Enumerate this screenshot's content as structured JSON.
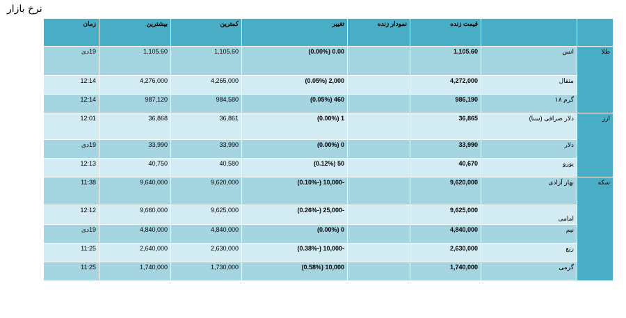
{
  "page": {
    "title": "نرخ بازار"
  },
  "headers": {
    "group": "",
    "name": "",
    "live_price": "قیمت زنده",
    "live_chart": "نمودار زنده",
    "change": "تغییر",
    "low": "کمترین",
    "high": "بیشترین",
    "time": "زمان"
  },
  "rows": [
    {
      "group": "طلا",
      "name": "انس",
      "price": "1,105.60",
      "change": "0.00 (0.00%)",
      "low": "1,105.60",
      "high": "1,105.60",
      "time": "19دی"
    },
    {
      "name": "مثقال",
      "price": "4,272,000",
      "change": "2,000 (0.05%)",
      "low": "4,265,000",
      "high": "4,276,000",
      "time": "12:14"
    },
    {
      "name": "گرم ۱۸",
      "price": "986,190",
      "change": "460 (0.05%)",
      "low": "984,580",
      "high": "987,120",
      "time": "12:14"
    },
    {
      "group": "ارز",
      "name": "دلار صرافی (سنا)",
      "price": "36,865",
      "change": "1 (0.00%)",
      "low": "36,861",
      "high": "36,868",
      "time": "12:01"
    },
    {
      "name": "دلار",
      "price": "33,990",
      "change": "0 (0.00%)",
      "low": "33,990",
      "high": "33,990",
      "time": "19دی"
    },
    {
      "name": "یورو",
      "price": "40,670",
      "change": "50 (0.12%)",
      "low": "40,580",
      "high": "40,750",
      "time": "12:13"
    },
    {
      "group": "سکه",
      "name": "بهار آزادی",
      "price": "9,620,000",
      "change": "-10,000 (-0.10%)",
      "low": "9,620,000",
      "high": "9,640,000",
      "time": "11:38"
    },
    {
      "name": "امامی",
      "price": "9,625,000",
      "change": "-25,000 (-0.26%)",
      "low": "9,625,000",
      "high": "9,660,000",
      "time": "12:12"
    },
    {
      "name": "نیم",
      "price": "4,840,000",
      "change": "0 (0.00%)",
      "low": "4,840,000",
      "high": "4,840,000",
      "time": "19دی"
    },
    {
      "name": "ربع",
      "price": "2,630,000",
      "change": "-10,000 (-0.38%)",
      "low": "2,630,000",
      "high": "2,640,000",
      "time": "11:25"
    },
    {
      "name": "گرمی",
      "price": "1,740,000",
      "change": "10,000 (0.58%)",
      "low": "1,730,000",
      "high": "1,740,000",
      "time": "11:25"
    }
  ]
}
